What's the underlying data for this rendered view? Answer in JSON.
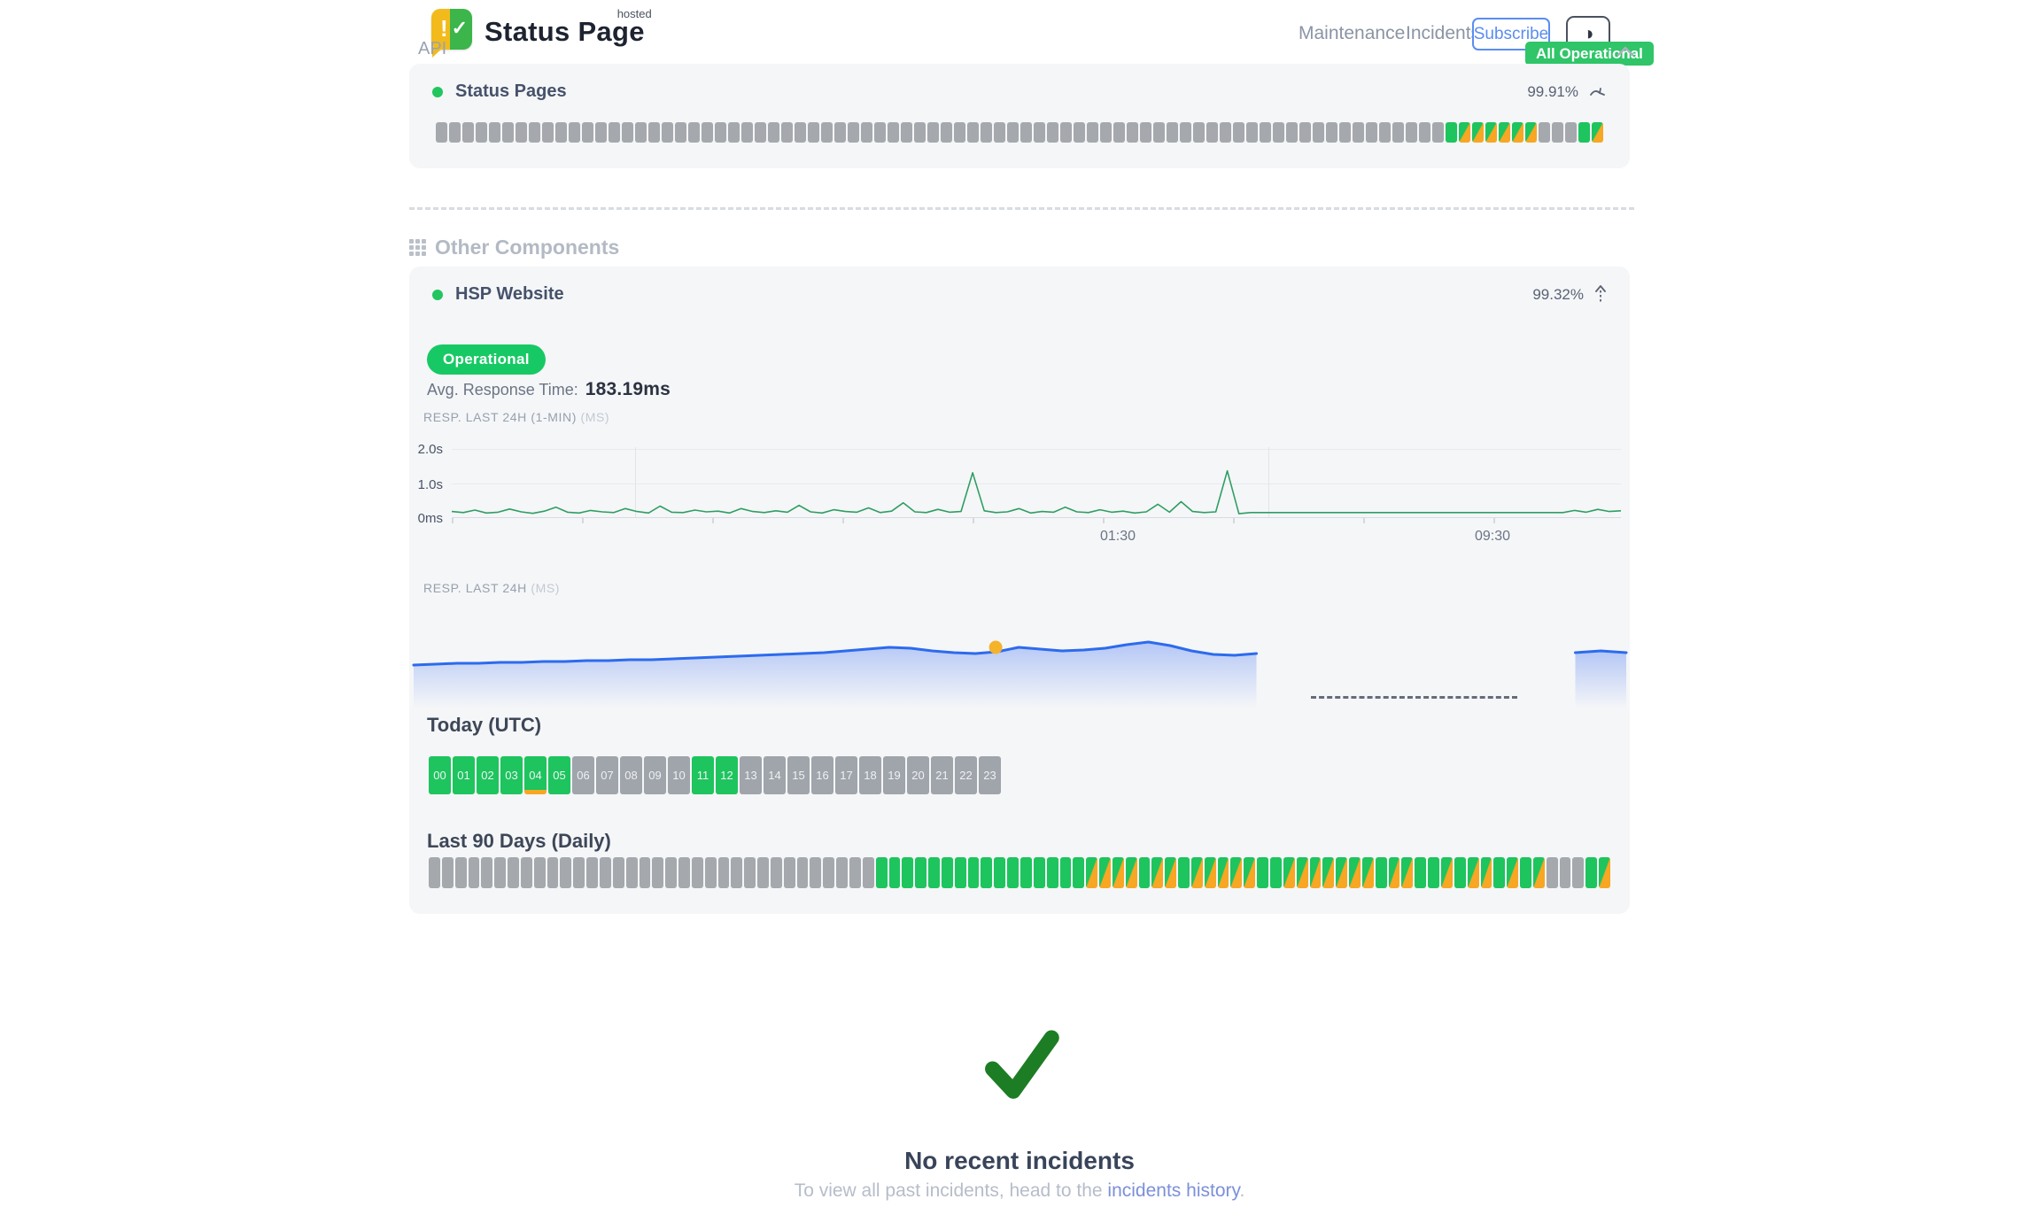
{
  "header": {
    "brand": "Status Page",
    "brand_super": "hosted",
    "nav": [
      {
        "label": "Maintenance"
      },
      {
        "label": "Incidents"
      }
    ],
    "subscribe": "Subscribe",
    "theme_icon": "◑",
    "badge": "All Operational"
  },
  "api_section": {
    "label": "API",
    "component_name": "Status Pages",
    "uptime": "99.91%",
    "bars": "NNNNNNNNNNNNNNNNNNNNNNNNNNNNNNNNNNNNNNNNNNNNNNNNNNNNNNNNNNNNNNNNNNNNNNNNNNNNGSSSSSSNNNGS"
  },
  "other_components": {
    "heading": "Other Components",
    "component_name": "HSP Website",
    "uptime": "99.32%",
    "status_label": "Operational",
    "avg_label": "Avg. Response Time:",
    "avg_value": "183.19ms"
  },
  "chart_data": [
    {
      "type": "line",
      "title": "RESP. LAST 24H (1-MIN)",
      "unit": "(MS)",
      "ylabels": [
        "2.0s",
        "1.0s",
        "0ms"
      ],
      "ylim": [
        0,
        2000
      ],
      "xticks": [
        "01:30",
        "09:30"
      ],
      "grid": "horizontal+vertical",
      "values": [
        180,
        150,
        220,
        140,
        160,
        250,
        170,
        130,
        190,
        300,
        160,
        140,
        210,
        170,
        150,
        260,
        180,
        140,
        330,
        160,
        150,
        220,
        170,
        190,
        140,
        260,
        180,
        150,
        200,
        160,
        350,
        170,
        140,
        230,
        180,
        160,
        280,
        150,
        190,
        420,
        170,
        150,
        240,
        160,
        180,
        1250,
        200,
        150,
        170,
        260,
        140,
        180,
        160,
        300,
        170,
        150,
        230,
        160,
        190,
        140,
        170,
        380,
        160,
        450,
        180,
        150,
        170,
        1300,
        120,
        150,
        150,
        150,
        150,
        150,
        150,
        150,
        150,
        150,
        150,
        150,
        150,
        150,
        150,
        150,
        150,
        150,
        150,
        150,
        150,
        150,
        150,
        150,
        150,
        150,
        150,
        150,
        150,
        210,
        160,
        240,
        180,
        200
      ]
    },
    {
      "type": "area",
      "title": "RESP. LAST 24H",
      "unit": "(MS)",
      "segments": [
        {
          "start_pct": 0,
          "end_pct": 69.5,
          "values": [
            30,
            31,
            32,
            32,
            33,
            33,
            34,
            34,
            35,
            35,
            36,
            36,
            37,
            38,
            39,
            40,
            41,
            42,
            43,
            44,
            46,
            48,
            50,
            49,
            46,
            44,
            43,
            45,
            50,
            48,
            46,
            47,
            49,
            53,
            56,
            52,
            46,
            42,
            41,
            43
          ]
        },
        {
          "start_pct": 95.8,
          "end_pct": 100,
          "values": [
            44,
            45,
            46,
            45,
            44
          ]
        }
      ],
      "marker": {
        "pct": 48,
        "value": 50,
        "color": "#f5b32a"
      },
      "gap_dash": {
        "start_pct": 74,
        "end_pct": 91
      }
    }
  ],
  "today": {
    "heading": "Today (UTC)",
    "hours": [
      {
        "label": "00",
        "status": "up"
      },
      {
        "label": "01",
        "status": "up"
      },
      {
        "label": "02",
        "status": "up"
      },
      {
        "label": "03",
        "status": "up"
      },
      {
        "label": "04",
        "status": "partial"
      },
      {
        "label": "05",
        "status": "up"
      },
      {
        "label": "06",
        "status": "none"
      },
      {
        "label": "07",
        "status": "none"
      },
      {
        "label": "08",
        "status": "none"
      },
      {
        "label": "09",
        "status": "none"
      },
      {
        "label": "10",
        "status": "none"
      },
      {
        "label": "11",
        "status": "up"
      },
      {
        "label": "12",
        "status": "up"
      },
      {
        "label": "13",
        "status": "none"
      },
      {
        "label": "14",
        "status": "none"
      },
      {
        "label": "15",
        "status": "none"
      },
      {
        "label": "16",
        "status": "none"
      },
      {
        "label": "17",
        "status": "none"
      },
      {
        "label": "18",
        "status": "none"
      },
      {
        "label": "19",
        "status": "none"
      },
      {
        "label": "20",
        "status": "none"
      },
      {
        "label": "21",
        "status": "none"
      },
      {
        "label": "22",
        "status": "none"
      },
      {
        "label": "23",
        "status": "none"
      }
    ]
  },
  "last90": {
    "heading": "Last 90 Days (Daily)",
    "bars": "NNNNNNNNNNNNNNNNNNNNNNNNNNNNNNNNNNGGGGGGGGGGGGGGGGSSSSGSSGSSSSSGGSSSSSSSGSSGGSGSSGSGSNNNGS"
  },
  "incidents": {
    "title": "No recent incidents",
    "prefix": "To view all past incidents, head to the ",
    "link_label": "incidents history",
    "suffix": "."
  },
  "colors": {
    "green": "#1ec45e",
    "orange": "#f7a723",
    "gray_bar": "#a5a8ad",
    "blue": "#2c6bee",
    "accent_blue": "#5b8def",
    "line_green": "#2e9e63",
    "marker_yellow": "#f5b32a",
    "check_green": "#1d7d24",
    "badge_green": "#2fc568"
  }
}
